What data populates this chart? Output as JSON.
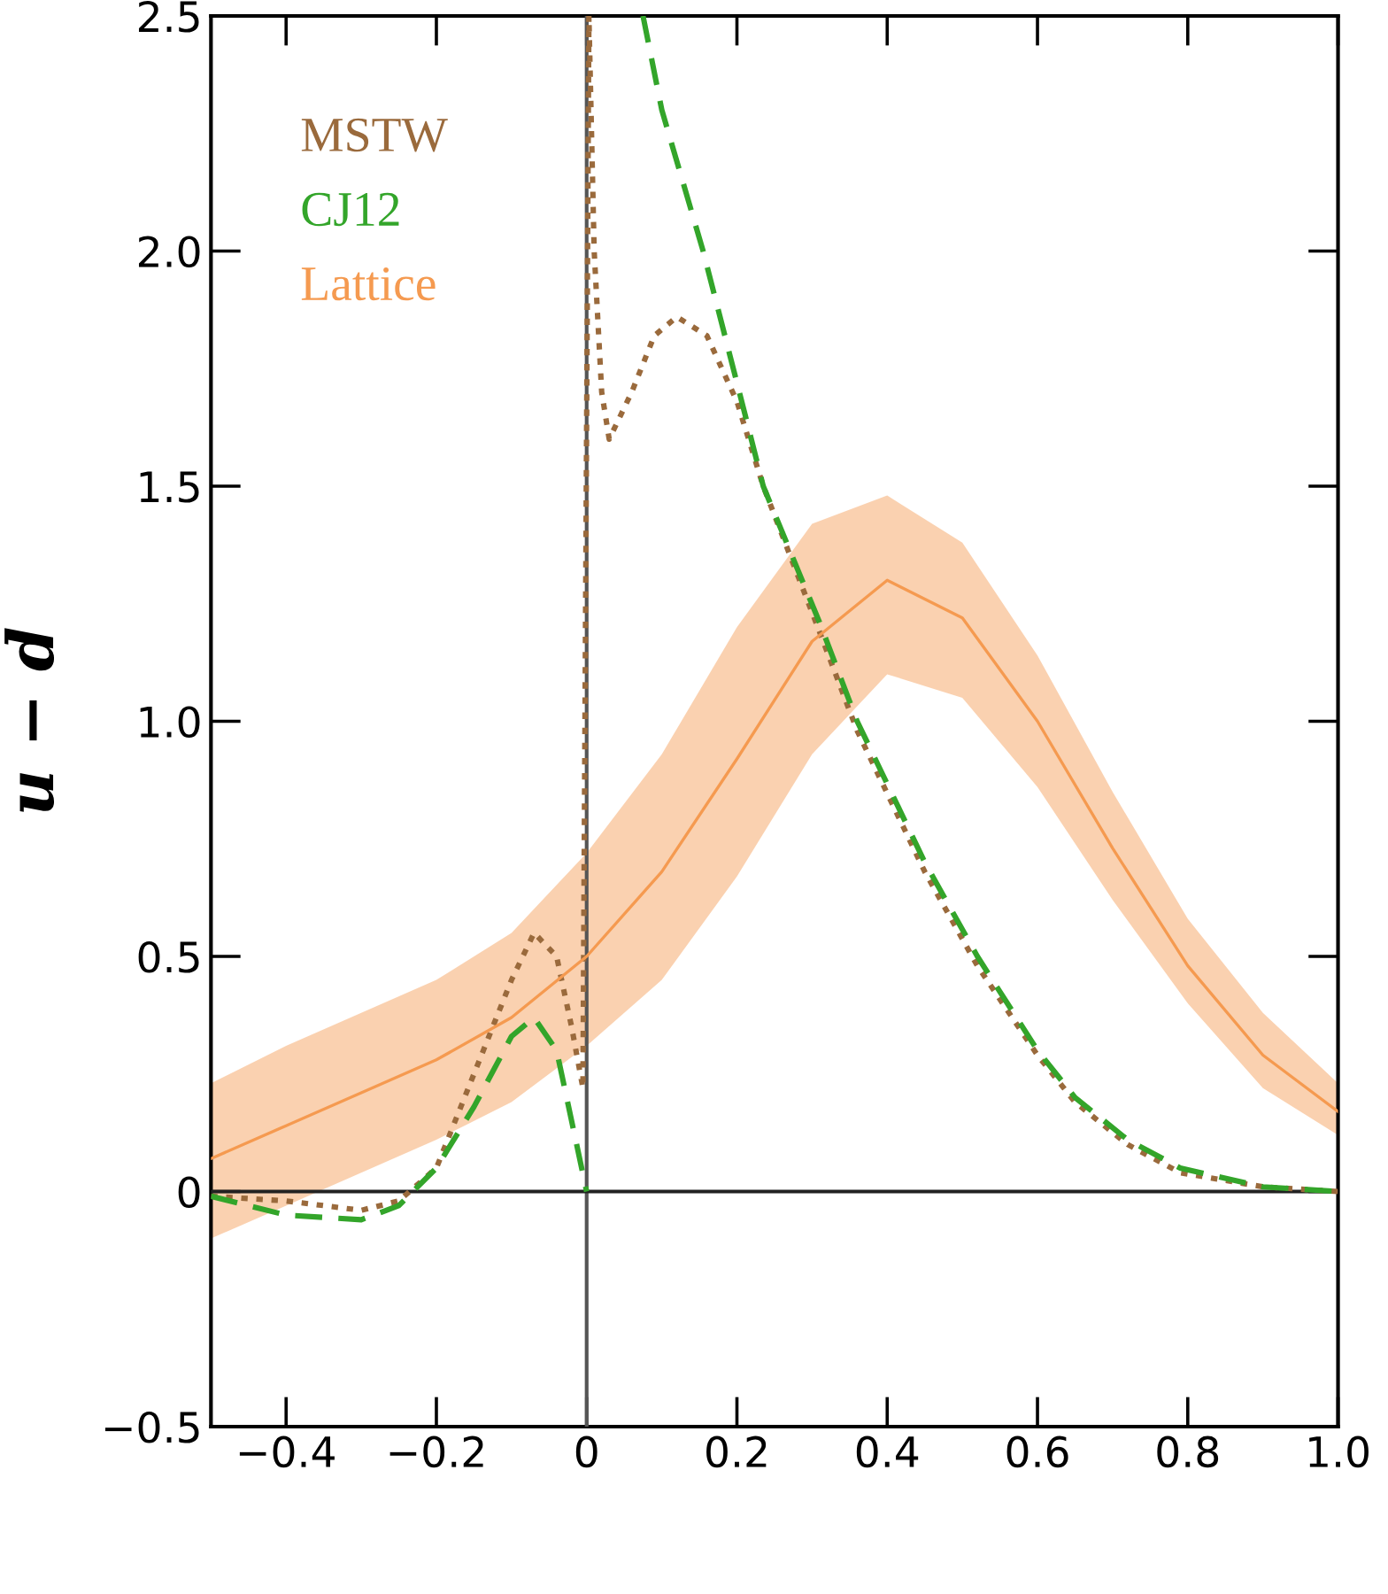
{
  "chart_data": {
    "type": "line",
    "ylabel": "u − d",
    "xlim": [
      -0.5,
      1.0
    ],
    "ylim": [
      -0.5,
      2.5
    ],
    "xticks": [
      {
        "value": -0.4,
        "label": "−0.4"
      },
      {
        "value": -0.2,
        "label": "−0.2"
      },
      0,
      0.2,
      0.4,
      0.6,
      0.8,
      {
        "value": 1.0,
        "label": "1.0"
      }
    ],
    "yticks": [
      {
        "value": -0.5,
        "label": "−0.5"
      },
      0,
      0.5,
      {
        "value": 1.0,
        "label": "1.0"
      },
      1.5,
      {
        "value": 2.0,
        "label": "2.0"
      },
      2.5
    ],
    "grid": false,
    "legend": "top left",
    "ref_lines": [
      {
        "axis": "x",
        "value": 0,
        "color": "#555555"
      },
      {
        "axis": "y",
        "value": 0,
        "color": "#222222"
      }
    ],
    "series": [
      {
        "name": "MSTW",
        "color": "#9a6a3c",
        "line_style": "dotted",
        "x": [
          -0.5,
          -0.4,
          -0.3,
          -0.25,
          -0.2,
          -0.15,
          -0.1,
          -0.07,
          -0.04,
          -0.02,
          -0.005,
          0.003,
          0.01,
          0.02,
          0.03,
          0.06,
          0.09,
          0.12,
          0.16,
          0.2,
          0.235,
          0.31,
          0.36,
          0.45,
          0.52,
          0.6,
          0.65,
          0.72,
          0.79,
          0.9,
          1.0
        ],
        "values": [
          -0.01,
          -0.02,
          -0.04,
          -0.02,
          0.05,
          0.25,
          0.45,
          0.55,
          0.5,
          0.35,
          0.22,
          2.5,
          2.0,
          1.7,
          1.6,
          1.7,
          1.82,
          1.86,
          1.82,
          1.68,
          1.5,
          1.19,
          0.98,
          0.68,
          0.48,
          0.29,
          0.19,
          0.1,
          0.04,
          0.01,
          0.0
        ]
      },
      {
        "name": "CJ12",
        "color": "#33a52a",
        "line_style": "dashed",
        "x": [
          -0.5,
          -0.4,
          -0.3,
          -0.25,
          -0.2,
          -0.15,
          -0.1,
          -0.07,
          -0.04,
          -0.02,
          0,
          0.04,
          0.075,
          0.1,
          0.155,
          0.2,
          0.235,
          0.31,
          0.36,
          0.45,
          0.52,
          0.6,
          0.65,
          0.72,
          0.79,
          0.9,
          1.0
        ],
        "values": [
          -0.01,
          -0.05,
          -0.06,
          -0.03,
          0.05,
          0.18,
          0.33,
          0.37,
          0.3,
          0.15,
          0.0,
          null,
          2.5,
          2.3,
          2.0,
          1.72,
          1.5,
          1.21,
          1.0,
          0.7,
          0.5,
          0.3,
          0.2,
          0.11,
          0.05,
          0.01,
          0.0
        ]
      },
      {
        "name": "Lattice",
        "color": "#f59a50",
        "line_style": "solid",
        "x": [
          -0.5,
          -0.4,
          -0.3,
          -0.2,
          -0.1,
          0,
          0.1,
          0.2,
          0.3,
          0.4,
          0.5,
          0.6,
          0.7,
          0.8,
          0.9,
          1.0
        ],
        "values": [
          0.07,
          0.14,
          0.21,
          0.28,
          0.37,
          0.5,
          0.68,
          0.92,
          1.17,
          1.3,
          1.22,
          1.0,
          0.73,
          0.48,
          0.29,
          0.17
        ],
        "upper": [
          0.23,
          0.31,
          0.38,
          0.45,
          0.55,
          0.72,
          0.93,
          1.2,
          1.42,
          1.48,
          1.38,
          1.14,
          0.85,
          0.58,
          0.38,
          0.23
        ],
        "lower": [
          -0.1,
          -0.03,
          0.04,
          0.11,
          0.19,
          0.31,
          0.45,
          0.67,
          0.93,
          1.1,
          1.05,
          0.86,
          0.62,
          0.4,
          0.22,
          0.12
        ]
      }
    ]
  }
}
